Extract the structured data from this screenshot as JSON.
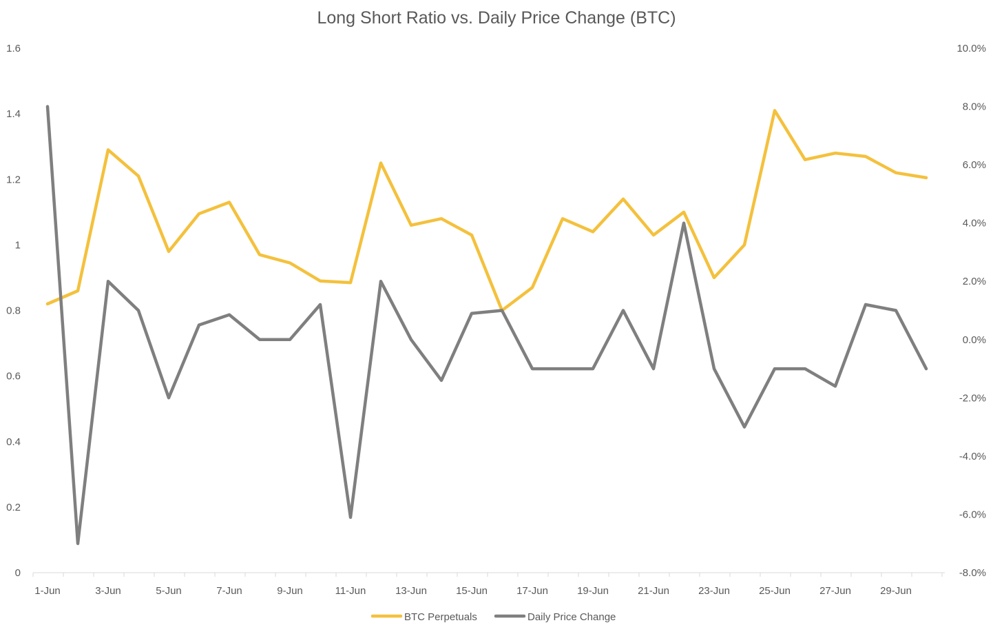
{
  "chart_data": {
    "type": "line",
    "title": "Long Short Ratio vs. Daily Price Change (BTC)",
    "x": [
      "1-Jun",
      "2-Jun",
      "3-Jun",
      "4-Jun",
      "5-Jun",
      "6-Jun",
      "7-Jun",
      "8-Jun",
      "9-Jun",
      "10-Jun",
      "11-Jun",
      "12-Jun",
      "13-Jun",
      "14-Jun",
      "15-Jun",
      "16-Jun",
      "17-Jun",
      "18-Jun",
      "19-Jun",
      "20-Jun",
      "21-Jun",
      "22-Jun",
      "23-Jun",
      "24-Jun",
      "25-Jun",
      "26-Jun",
      "27-Jun",
      "28-Jun",
      "29-Jun",
      "30-Jun"
    ],
    "x_tick_labels": [
      "1-Jun",
      "3-Jun",
      "5-Jun",
      "7-Jun",
      "9-Jun",
      "11-Jun",
      "13-Jun",
      "15-Jun",
      "17-Jun",
      "19-Jun",
      "21-Jun",
      "23-Jun",
      "25-Jun",
      "27-Jun",
      "29-Jun"
    ],
    "y_left": {
      "min": 0,
      "max": 1.6,
      "ticks": [
        0,
        0.2,
        0.4,
        0.6,
        0.8,
        1,
        1.2,
        1.4,
        1.6
      ],
      "tick_labels": [
        "0",
        "0.2",
        "0.4",
        "0.6",
        "0.8",
        "1",
        "1.2",
        "1.4",
        "1.6"
      ]
    },
    "y_right": {
      "min": -8,
      "max": 10,
      "ticks": [
        -8,
        -6,
        -4,
        -2,
        0,
        2,
        4,
        6,
        8,
        10
      ],
      "tick_labels": [
        "-8.0%",
        "-6.0%",
        "-4.0%",
        "-2.0%",
        "0.0%",
        "2.0%",
        "4.0%",
        "6.0%",
        "8.0%",
        "10.0%"
      ]
    },
    "series": [
      {
        "name": "BTC Perpetuals",
        "axis": "left",
        "color": "#f4c13d",
        "values": [
          0.82,
          0.86,
          1.29,
          1.21,
          0.98,
          1.095,
          1.13,
          0.97,
          0.945,
          0.89,
          0.885,
          1.25,
          1.06,
          1.08,
          1.03,
          0.8,
          0.87,
          1.08,
          1.04,
          1.14,
          1.03,
          1.1,
          0.9,
          1.0,
          1.41,
          1.26,
          1.28,
          1.27,
          1.22,
          1.205
        ]
      },
      {
        "name": "Daily Price Change",
        "axis": "right",
        "color": "#7f7f7f",
        "values": [
          8.0,
          -7.0,
          2.0,
          1.0,
          -2.0,
          0.5,
          0.85,
          0.0,
          0.0,
          1.2,
          -6.1,
          2.0,
          0.0,
          -1.4,
          0.9,
          1.0,
          -1.0,
          -1.0,
          -1.0,
          1.0,
          -1.0,
          4.0,
          -1.0,
          -3.0,
          -1.0,
          -1.0,
          -1.6,
          1.2,
          1.0,
          -1.0
        ]
      }
    ],
    "legend_position": "bottom-center",
    "grid": false
  }
}
